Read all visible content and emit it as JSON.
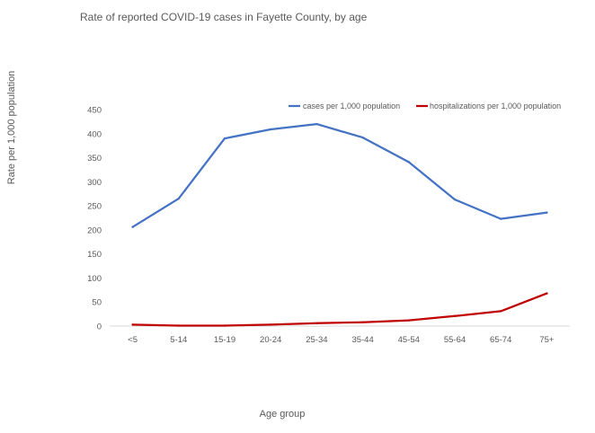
{
  "chart_data": {
    "type": "line",
    "title": "Rate of reported COVID-19 cases in Fayette County, by age",
    "xlabel": "Age group",
    "ylabel": "Rate per 1,000 population",
    "categories": [
      "<5",
      "5-14",
      "15-19",
      "20-24",
      "25-34",
      "35-44",
      "45-54",
      "55-64",
      "65-74",
      "75+"
    ],
    "ylim": [
      0,
      450
    ],
    "yticks": [
      0,
      50,
      100,
      150,
      200,
      250,
      300,
      350,
      400,
      450
    ],
    "grid": false,
    "legend_position": "top-right",
    "series": [
      {
        "name": "cases per 1,000 population",
        "color": "#4472C4",
        "values": [
          206,
          265,
          390,
          409,
          420,
          392,
          341,
          263,
          223,
          236
        ]
      },
      {
        "name": "hospitalizations per 1,000 population",
        "color": "#C00000",
        "values": [
          3,
          1,
          1,
          3,
          6,
          8,
          12,
          21,
          31,
          68
        ]
      }
    ]
  }
}
